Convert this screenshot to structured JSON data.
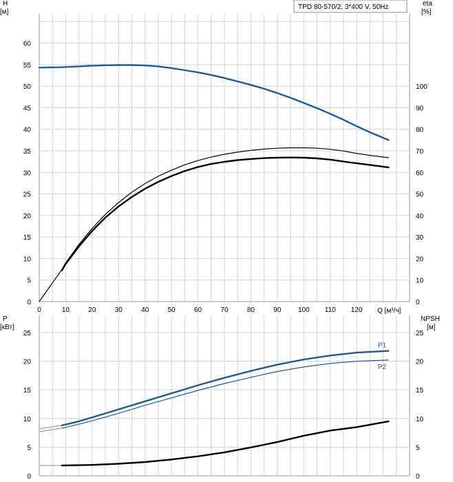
{
  "legend_box": "TPD 80-570/2, 3*400 V, 50Hz",
  "colors": {
    "blue": "#1f5a9a",
    "black": "#000000",
    "grid": "#d4d4d4"
  },
  "chart_data": [
    {
      "type": "line",
      "panel": "top",
      "xlabel": "Q [м³/ч]",
      "xlim": [
        0,
        140
      ],
      "x_ticks": [
        0,
        10,
        20,
        30,
        40,
        50,
        60,
        70,
        80,
        90,
        100,
        110,
        120
      ],
      "left_axis": {
        "label_line1": "H",
        "label_line2": "[м]",
        "lim": [
          0,
          70
        ],
        "ticks": [
          0,
          5,
          10,
          15,
          20,
          25,
          30,
          35,
          40,
          45,
          50,
          55,
          60
        ]
      },
      "right_axis": {
        "label_line1": "eta",
        "label_line2": "[%]",
        "lim": [
          0,
          140
        ],
        "ticks": [
          0,
          10,
          20,
          30,
          40,
          50,
          60,
          70,
          80,
          90,
          100
        ]
      },
      "series": [
        {
          "key": "H",
          "axis": "left",
          "color": "#1f5a9a",
          "width": 2.4,
          "points": [
            [
              0,
              54.3
            ],
            [
              8.5,
              54.4
            ],
            [
              15,
              54.6
            ],
            [
              20,
              54.75
            ],
            [
              25,
              54.85
            ],
            [
              30,
              54.9
            ],
            [
              35,
              54.9
            ],
            [
              40,
              54.8
            ],
            [
              45,
              54.6
            ],
            [
              50,
              54.2
            ],
            [
              55,
              53.7
            ],
            [
              60,
              53.2
            ],
            [
              65,
              52.6
            ],
            [
              70,
              51.9
            ],
            [
              75,
              51.1
            ],
            [
              80,
              50.3
            ],
            [
              85,
              49.4
            ],
            [
              90,
              48.4
            ],
            [
              95,
              47.3
            ],
            [
              100,
              46.1
            ],
            [
              105,
              44.9
            ],
            [
              110,
              43.6
            ],
            [
              115,
              42.2
            ],
            [
              120,
              40.7
            ],
            [
              125,
              39.3
            ],
            [
              132,
              37.5
            ]
          ]
        },
        {
          "key": "eta_thin",
          "axis": "right",
          "color": "#000000",
          "width": 1.2,
          "points": [
            [
              0,
              0
            ],
            [
              8.5,
              14.8
            ],
            [
              10,
              18
            ],
            [
              15,
              26.5
            ],
            [
              20,
              34
            ],
            [
              25,
              40.5
            ],
            [
              30,
              46
            ],
            [
              35,
              50.8
            ],
            [
              40,
              54.8
            ],
            [
              45,
              58.2
            ],
            [
              50,
              61
            ],
            [
              55,
              63.5
            ],
            [
              60,
              65.5
            ],
            [
              65,
              67.1
            ],
            [
              70,
              68.4
            ],
            [
              75,
              69.4
            ],
            [
              80,
              70.2
            ],
            [
              85,
              70.8
            ],
            [
              90,
              71.2
            ],
            [
              95,
              71.4
            ],
            [
              100,
              71.4
            ],
            [
              105,
              71.2
            ],
            [
              110,
              70.7
            ],
            [
              115,
              69.9
            ],
            [
              120,
              68.8
            ],
            [
              125,
              67.9
            ],
            [
              132,
              66.8
            ]
          ]
        },
        {
          "key": "eta_thick",
          "axis": "right",
          "color": "#000000",
          "width": 2.4,
          "points": [
            [
              8.5,
              14.4
            ],
            [
              10,
              17.5
            ],
            [
              15,
              25.6
            ],
            [
              20,
              32.8
            ],
            [
              25,
              39
            ],
            [
              30,
              44.2
            ],
            [
              35,
              48.6
            ],
            [
              40,
              52.4
            ],
            [
              45,
              55.6
            ],
            [
              50,
              58.3
            ],
            [
              55,
              60.6
            ],
            [
              60,
              62.5
            ],
            [
              65,
              63.9
            ],
            [
              70,
              64.9
            ],
            [
              75,
              65.7
            ],
            [
              80,
              66.2
            ],
            [
              85,
              66.6
            ],
            [
              90,
              66.8
            ],
            [
              95,
              66.9
            ],
            [
              100,
              66.8
            ],
            [
              105,
              66.5
            ],
            [
              110,
              65.9
            ],
            [
              115,
              65
            ],
            [
              120,
              64.2
            ],
            [
              125,
              63.4
            ],
            [
              132,
              62.3
            ]
          ]
        }
      ]
    },
    {
      "type": "line",
      "panel": "bottom",
      "xlim": [
        0,
        140
      ],
      "left_axis": {
        "label_line1": "P",
        "label_line2": "[кВт]",
        "lim": [
          0,
          28
        ],
        "ticks": [
          0,
          5,
          10,
          15,
          20,
          25
        ]
      },
      "right_axis": {
        "label_line1": "NPSH",
        "label_line2": "[м]",
        "lim": [
          0,
          28
        ],
        "ticks": [
          0,
          5,
          10,
          15,
          20,
          25
        ]
      },
      "series": [
        {
          "key": "P1",
          "name": "P1",
          "axis": "left",
          "color": "#1f5a9a",
          "width": 2.4,
          "label_at": [
            128,
            22.9
          ],
          "points": [
            [
              8.5,
              8.8
            ],
            [
              15,
              9.5
            ],
            [
              20,
              10.2
            ],
            [
              30,
              11.6
            ],
            [
              40,
              13
            ],
            [
              50,
              14.4
            ],
            [
              60,
              15.8
            ],
            [
              70,
              17.1
            ],
            [
              80,
              18.3
            ],
            [
              90,
              19.4
            ],
            [
              100,
              20.3
            ],
            [
              110,
              21
            ],
            [
              120,
              21.5
            ],
            [
              132,
              21.8
            ]
          ]
        },
        {
          "key": "P2",
          "name": "P2",
          "axis": "left",
          "color": "#1f5a9a",
          "width": 1.2,
          "label_at": [
            128,
            19.1
          ],
          "points": [
            [
              8.5,
              8.3
            ],
            [
              15,
              9
            ],
            [
              20,
              9.6
            ],
            [
              30,
              10.9
            ],
            [
              40,
              12.3
            ],
            [
              50,
              13.6
            ],
            [
              60,
              14.9
            ],
            [
              70,
              16.1
            ],
            [
              80,
              17.2
            ],
            [
              90,
              18.2
            ],
            [
              100,
              19
            ],
            [
              110,
              19.6
            ],
            [
              120,
              20
            ],
            [
              132,
              20.2
            ]
          ]
        },
        {
          "key": "P_ext",
          "axis": "left",
          "color": "#888888",
          "width": 1.0,
          "points": [
            [
              0,
              8.2
            ],
            [
              8.5,
              8.8
            ]
          ]
        },
        {
          "key": "P_ext2",
          "axis": "left",
          "color": "#888888",
          "width": 1.0,
          "points": [
            [
              0,
              7.7
            ],
            [
              8.5,
              8.3
            ]
          ]
        },
        {
          "key": "NPSH",
          "axis": "right",
          "color": "#000000",
          "width": 2.4,
          "points": [
            [
              8.5,
              1.8
            ],
            [
              15,
              1.85
            ],
            [
              20,
              1.9
            ],
            [
              30,
              2.1
            ],
            [
              40,
              2.4
            ],
            [
              50,
              2.85
            ],
            [
              60,
              3.4
            ],
            [
              70,
              4.1
            ],
            [
              80,
              4.95
            ],
            [
              90,
              5.9
            ],
            [
              100,
              7
            ],
            [
              110,
              7.9
            ],
            [
              120,
              8.5
            ],
            [
              132,
              9.5
            ]
          ]
        },
        {
          "key": "NPSH_ext",
          "axis": "right",
          "color": "#888888",
          "width": 1.0,
          "points": [
            [
              0,
              1.8
            ],
            [
              8.5,
              1.8
            ]
          ]
        }
      ]
    }
  ]
}
